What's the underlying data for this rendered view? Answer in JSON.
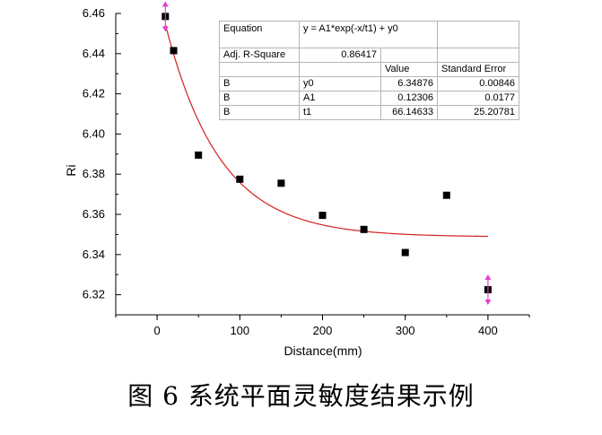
{
  "caption": "图 6  系统平面灵敏度结果示例",
  "chart_data": {
    "type": "scatter",
    "xlabel": "Distance(mm)",
    "ylabel": "Ri",
    "xlim": [
      -50,
      450
    ],
    "ylim": [
      6.31,
      6.46
    ],
    "x_ticks": [
      0,
      100,
      200,
      300,
      400
    ],
    "y_ticks": [
      6.32,
      6.34,
      6.36,
      6.38,
      6.4,
      6.42,
      6.44,
      6.46
    ],
    "x_tick_labels": [
      "0",
      "100",
      "200",
      "300",
      "400"
    ],
    "y_tick_labels": [
      "6.32",
      "6.34",
      "6.36",
      "6.38",
      "6.40",
      "6.42",
      "6.44",
      "6.46"
    ],
    "points": [
      {
        "x": 10,
        "y": 6.4585
      },
      {
        "x": 20,
        "y": 6.4415
      },
      {
        "x": 50,
        "y": 6.3895
      },
      {
        "x": 100,
        "y": 6.3775
      },
      {
        "x": 150,
        "y": 6.3755
      },
      {
        "x": 200,
        "y": 6.3595
      },
      {
        "x": 250,
        "y": 6.3525
      },
      {
        "x": 300,
        "y": 6.341
      },
      {
        "x": 350,
        "y": 6.3695
      },
      {
        "x": 400,
        "y": 6.3225
      }
    ],
    "fit": {
      "model": "exp_decay",
      "y0": 6.34876,
      "A1": 0.12306,
      "t1": 66.14633,
      "x_range": [
        10,
        400
      ]
    },
    "outlier_marker_x": [
      10,
      400
    ],
    "colors": {
      "points": "#000000",
      "fit": "#d42020",
      "outlier_marker": "#e040d0"
    },
    "grid": false
  },
  "table": {
    "equation_label": "Equation",
    "equation": "y = A1*exp(-x/t1) + y0",
    "r2_label": "Adj. R-Square",
    "r2_value": "0.86417",
    "value_header": "Value",
    "se_header": "Standard Error",
    "rows": [
      {
        "name": "B",
        "param": "y0",
        "value": "6.34876",
        "se": "0.00846"
      },
      {
        "name": "B",
        "param": "A1",
        "value": "0.12306",
        "se": "0.0177"
      },
      {
        "name": "B",
        "param": "t1",
        "value": "66.14633",
        "se": "25.20781"
      }
    ]
  }
}
